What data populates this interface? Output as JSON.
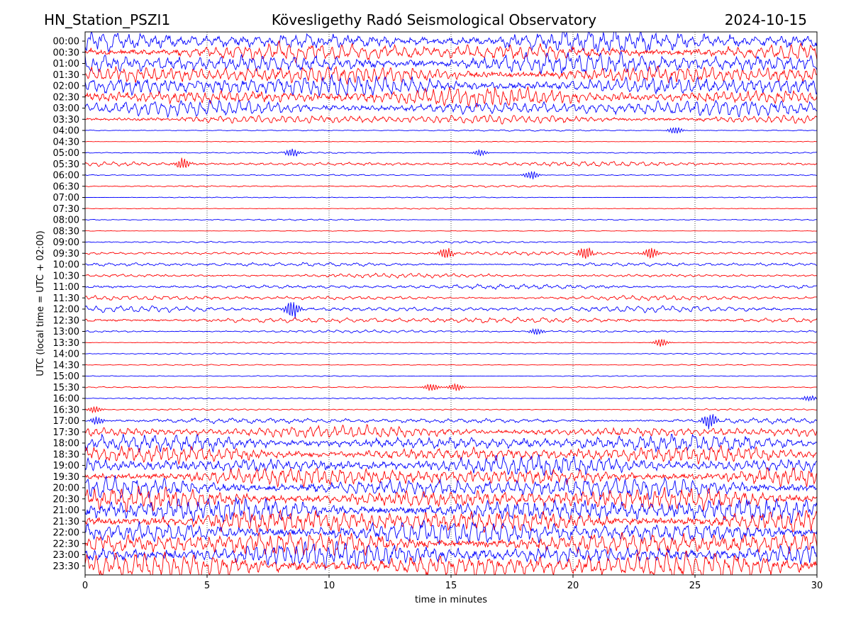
{
  "header": {
    "station": "HN_Station_PSZI1",
    "observatory": "Kövesligethy Radó Seismological Observatory",
    "date": "2024-10-15"
  },
  "chart_data": {
    "type": "line",
    "title": "Kövesligethy Radó Seismological Observatory",
    "xlabel": "time in minutes",
    "ylabel": "UTC (local time = UTC + 02:00)",
    "xlim": [
      0,
      30
    ],
    "x_ticks": [
      "0",
      "5",
      "10",
      "15",
      "20",
      "25",
      "30"
    ],
    "grid": "vertical dotted lines every 5 minutes",
    "trace_colors": [
      "#0000ff",
      "#ff0000"
    ],
    "row_labels": [
      "00:00",
      "00:30",
      "01:00",
      "01:30",
      "02:00",
      "02:30",
      "03:00",
      "03:30",
      "04:00",
      "04:30",
      "05:00",
      "05:30",
      "06:00",
      "06:30",
      "07:00",
      "07:30",
      "08:00",
      "08:30",
      "09:00",
      "09:30",
      "10:00",
      "10:30",
      "11:00",
      "11:30",
      "12:00",
      "12:30",
      "13:00",
      "13:30",
      "14:00",
      "14:30",
      "15:00",
      "15:30",
      "16:00",
      "16:30",
      "17:00",
      "17:30",
      "18:00",
      "18:30",
      "19:00",
      "19:30",
      "20:00",
      "20:30",
      "21:00",
      "21:30",
      "22:00",
      "22:30",
      "23:00",
      "23:30"
    ],
    "noise_level": [
      16,
      14,
      16,
      14,
      16,
      14,
      12,
      7,
      1.2,
      0.6,
      1.0,
      3.5,
      1.0,
      1.5,
      0.8,
      0.8,
      1.0,
      0.6,
      1.6,
      2.5,
      3.0,
      3.0,
      3.5,
      3.5,
      4.5,
      4.5,
      2.0,
      1.0,
      1.0,
      0.8,
      0.8,
      1.0,
      1.2,
      1.2,
      4,
      9,
      12,
      12,
      14,
      14,
      16,
      16,
      18,
      18,
      18,
      18,
      18,
      20
    ],
    "events": [
      {
        "row": 8,
        "minute": 24.2,
        "amplitude": 6
      },
      {
        "row": 10,
        "minute": 8.5,
        "amplitude": 6
      },
      {
        "row": 10,
        "minute": 16.2,
        "amplitude": 5
      },
      {
        "row": 11,
        "minute": 4.0,
        "amplitude": 8
      },
      {
        "row": 12,
        "minute": 18.3,
        "amplitude": 7
      },
      {
        "row": 19,
        "minute": 14.8,
        "amplitude": 9
      },
      {
        "row": 19,
        "minute": 20.5,
        "amplitude": 10
      },
      {
        "row": 19,
        "minute": 23.2,
        "amplitude": 9
      },
      {
        "row": 24,
        "minute": 8.5,
        "amplitude": 14
      },
      {
        "row": 26,
        "minute": 18.5,
        "amplitude": 5
      },
      {
        "row": 27,
        "minute": 23.6,
        "amplitude": 6
      },
      {
        "row": 31,
        "minute": 14.2,
        "amplitude": 6
      },
      {
        "row": 31,
        "minute": 15.2,
        "amplitude": 6
      },
      {
        "row": 32,
        "minute": 29.7,
        "amplitude": 4
      },
      {
        "row": 33,
        "minute": 0.4,
        "amplitude": 5
      },
      {
        "row": 34,
        "minute": 0.5,
        "amplitude": 6
      },
      {
        "row": 34,
        "minute": 25.6,
        "amplitude": 12
      }
    ]
  }
}
